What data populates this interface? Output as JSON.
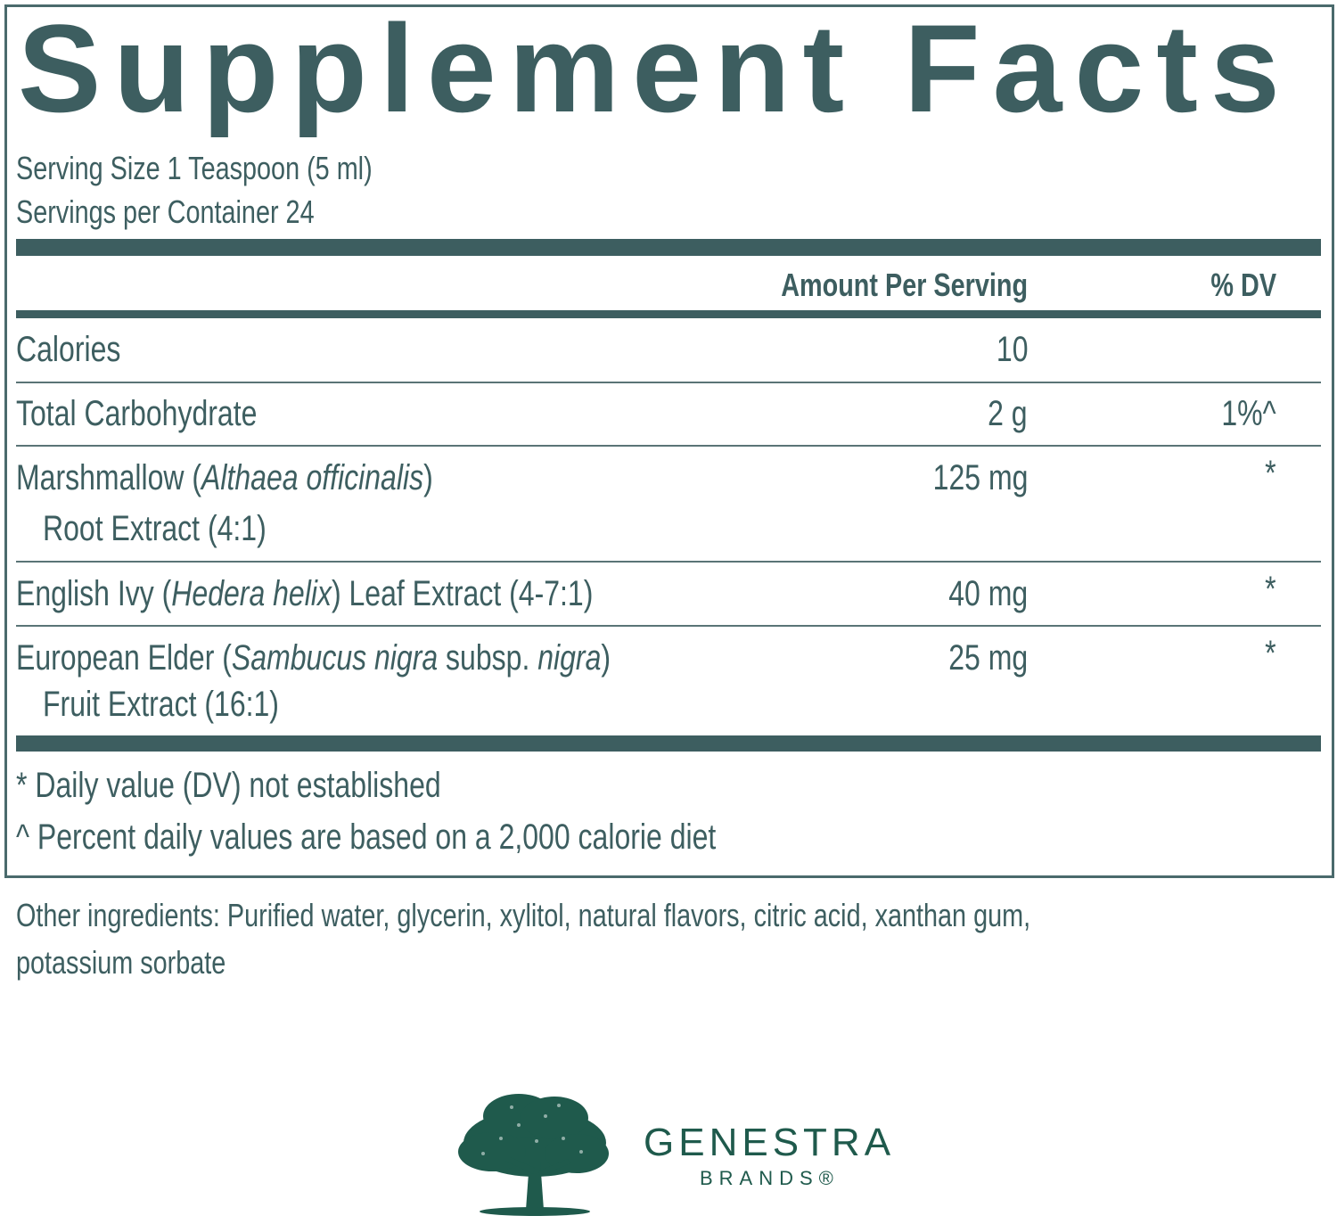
{
  "title": "Supplement Facts",
  "serving_size": "Serving Size 1 Teaspoon (5 ml)",
  "servings_per_container": "Servings per Container 24",
  "header": {
    "amount": "Amount Per Serving",
    "dv": "% DV"
  },
  "rows": [
    {
      "name": "Calories",
      "amount": "10",
      "dv": ""
    },
    {
      "name": "Total Carbohydrate",
      "amount": "2 g",
      "dv": "1%^"
    },
    {
      "name_pre": "Marshmallow (",
      "name_italic": "Althaea officinalis",
      "name_post": ")",
      "name_line2": "Root Extract (4:1)",
      "amount": "125 mg",
      "dv": "*"
    },
    {
      "name_pre": "English Ivy (",
      "name_italic": "Hedera helix",
      "name_post": ") Leaf Extract (4-7:1)",
      "amount": "40 mg",
      "dv": "*"
    },
    {
      "name_pre": "European Elder (",
      "name_italic": "Sambucus nigra",
      "name_mid": " subsp. ",
      "name_italic2": "nigra",
      "name_post": ")",
      "name_line2": "Fruit Extract (16:1)",
      "amount": "25 mg",
      "dv": "*"
    }
  ],
  "footnotes": [
    "* Daily value (DV) not established",
    "^ Percent daily values are based on a 2,000 calorie diet"
  ],
  "other_ingredients": [
    "Other ingredients: Purified water, glycerin, xylitol, natural flavors, citric acid, xanthan gum,",
    "potassium sorbate"
  ],
  "logo": {
    "brand": "GENESTRA",
    "sub": "BRANDS®",
    "colors": {
      "text": "#3d5e60",
      "logo": "#1f5a4c"
    }
  }
}
